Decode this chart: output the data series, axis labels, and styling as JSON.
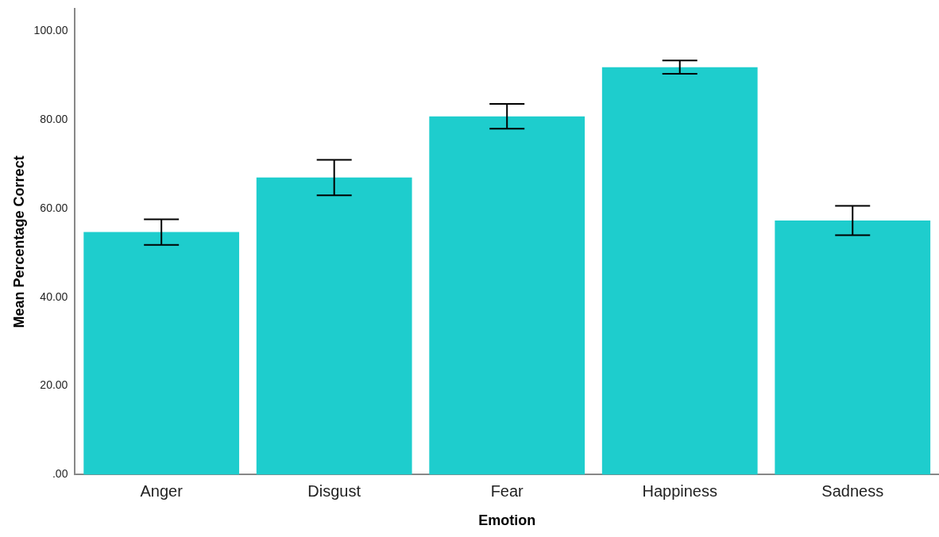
{
  "chart_data": {
    "type": "bar",
    "xlabel": "Emotion",
    "ylabel": "Mean Percentage Correct",
    "categories": [
      "Anger",
      "Disgust",
      "Fear",
      "Happiness",
      "Sadness"
    ],
    "color": "#1ecdcd",
    "values": [
      54.7,
      67.0,
      80.8,
      91.9,
      57.3
    ],
    "errors": [
      2.9,
      4.0,
      2.8,
      1.5,
      3.3
    ],
    "ylim": [
      0,
      105
    ],
    "yticks": [
      {
        "value": 0,
        "label": ".00"
      },
      {
        "value": 20,
        "label": "20.00"
      },
      {
        "value": 40,
        "label": "40.00"
      },
      {
        "value": 60,
        "label": "60.00"
      },
      {
        "value": 80,
        "label": "80.00"
      },
      {
        "value": 100,
        "label": "100.00"
      }
    ],
    "grid": false,
    "legend": false
  }
}
